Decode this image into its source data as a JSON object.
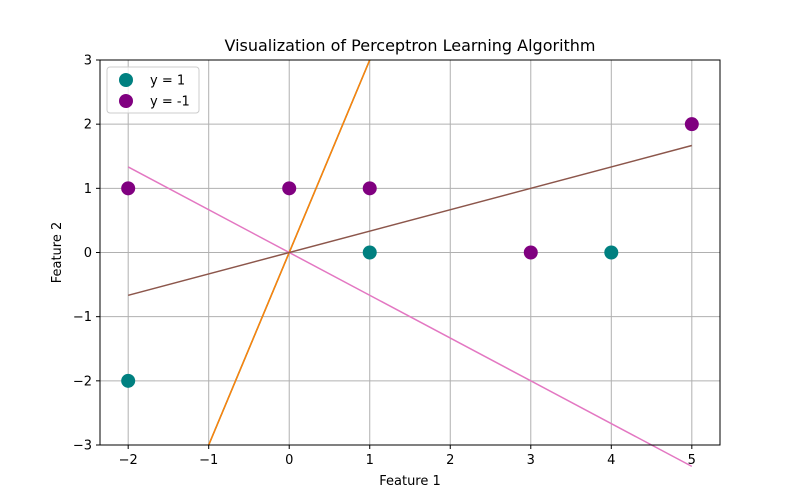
{
  "chart_data": {
    "type": "scatter",
    "title": "Visualization of Perceptron Learning Algorithm",
    "xlabel": "Feature 1",
    "ylabel": "Feature 2",
    "xlim": [
      -2.35,
      5.35
    ],
    "ylim": [
      -3,
      3
    ],
    "x_ticks": [
      -2,
      -1,
      0,
      1,
      2,
      3,
      4,
      5
    ],
    "y_ticks": [
      -3,
      -2,
      -1,
      0,
      1,
      2,
      3
    ],
    "x_tick_labels": [
      "−2",
      "−1",
      "0",
      "1",
      "2",
      "3",
      "4",
      "5"
    ],
    "y_tick_labels": [
      "−3",
      "−2",
      "−1",
      "0",
      "1",
      "2",
      "3"
    ],
    "grid": true,
    "legend_position": "top-left",
    "series": [
      {
        "name": "y = 1",
        "color": "#008080",
        "points": [
          [
            -2,
            -2
          ],
          [
            1,
            0
          ],
          [
            4,
            0
          ]
        ]
      },
      {
        "name": "y = -1",
        "color": "#800080",
        "points": [
          [
            -2,
            1
          ],
          [
            0,
            1
          ],
          [
            1,
            1
          ],
          [
            3,
            0
          ],
          [
            5,
            2
          ]
        ]
      }
    ],
    "lines": [
      {
        "color": "#2ca02c",
        "points": [
          [
            -1,
            -3
          ],
          [
            1,
            3
          ]
        ]
      },
      {
        "color": "#ff7f0e",
        "points": [
          [
            -1,
            -3
          ],
          [
            1,
            3
          ]
        ]
      },
      {
        "color": "#e377c2",
        "points": [
          [
            -2,
            1.333
          ],
          [
            5,
            -3.333
          ]
        ]
      },
      {
        "color": "#8c564b",
        "points": [
          [
            -2,
            -0.667
          ],
          [
            5,
            1.667
          ]
        ]
      }
    ]
  }
}
